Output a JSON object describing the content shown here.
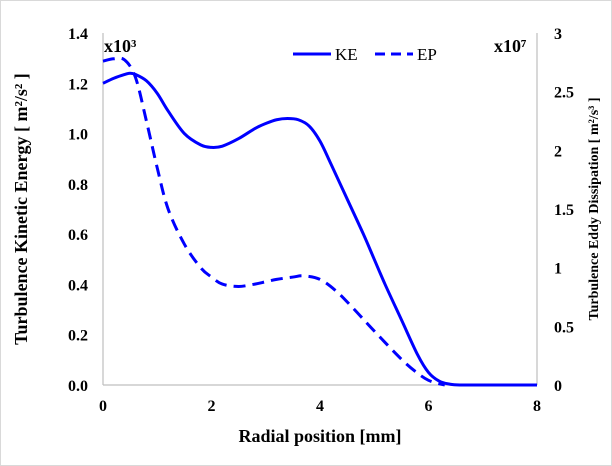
{
  "chart_data": {
    "type": "line",
    "xlabel": "Radial position [mm]",
    "xlim": [
      0,
      8
    ],
    "x_ticks": [
      "0",
      "2",
      "4",
      "6",
      "8"
    ],
    "ylabel_left": "Turbulence Kinetic Energy [ m²/s² ]",
    "ylim_left": [
      0,
      1.4
    ],
    "y_ticks_left": [
      "0.0",
      "0.2",
      "0.4",
      "0.6",
      "0.8",
      "1.0",
      "1.2",
      "1.4"
    ],
    "left_multiplier": "x10³",
    "ylabel_right": "Turbulence Eddy Dissipation [ m²/s³ ]",
    "ylim_right": [
      0,
      3
    ],
    "y_ticks_right": [
      "0",
      "0.5",
      "1",
      "1.5",
      "2",
      "2.5",
      "3"
    ],
    "right_multiplier": "x10⁷",
    "legend_position": "top",
    "grid": false,
    "series": [
      {
        "name": "KE",
        "axis": "left",
        "style": "solid",
        "color": "#0000ff",
        "x": [
          0,
          0.2,
          0.4,
          0.5,
          0.6,
          0.8,
          1.0,
          1.2,
          1.5,
          1.8,
          2.0,
          2.2,
          2.5,
          2.8,
          3.0,
          3.2,
          3.4,
          3.6,
          3.8,
          4.0,
          4.2,
          4.5,
          4.8,
          5.0,
          5.2,
          5.5,
          5.8,
          6.0,
          6.2,
          6.4,
          6.6,
          7.0,
          7.5,
          8.0
        ],
        "y": [
          1.2,
          1.22,
          1.235,
          1.24,
          1.235,
          1.21,
          1.16,
          1.09,
          1.0,
          0.955,
          0.945,
          0.95,
          0.98,
          1.02,
          1.04,
          1.055,
          1.06,
          1.055,
          1.03,
          0.97,
          0.88,
          0.74,
          0.6,
          0.5,
          0.4,
          0.26,
          0.12,
          0.05,
          0.015,
          0.003,
          0.0,
          0.0,
          0.0,
          0.0
        ]
      },
      {
        "name": "EP",
        "axis": "right",
        "style": "dashed",
        "color": "#0000ff",
        "x": [
          0,
          0.2,
          0.4,
          0.6,
          0.8,
          1.0,
          1.2,
          1.5,
          1.8,
          2.0,
          2.2,
          2.5,
          2.8,
          3.0,
          3.2,
          3.5,
          3.7,
          4.0,
          4.3,
          4.6,
          5.0,
          5.5,
          5.8,
          6.0,
          6.2,
          6.3
        ],
        "y": [
          2.76,
          2.78,
          2.77,
          2.62,
          2.25,
          1.85,
          1.5,
          1.2,
          1.0,
          0.92,
          0.86,
          0.84,
          0.86,
          0.88,
          0.9,
          0.92,
          0.93,
          0.9,
          0.8,
          0.66,
          0.46,
          0.22,
          0.1,
          0.04,
          0.01,
          0.0
        ]
      }
    ]
  }
}
